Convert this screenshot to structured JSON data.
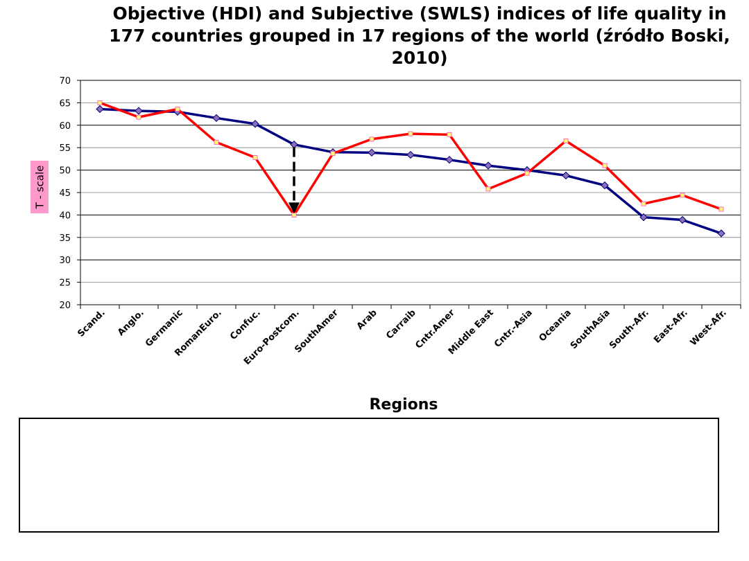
{
  "title": "Objective (HDI) and Subjective (SWLS) indices of life quality  in 177 countries  grouped in 17 regions of the world (źródło Boski, 2010)",
  "chart_data": {
    "type": "line",
    "title": "Objective (HDI) and Subjective (SWLS) indices of life quality  in 177 countries  grouped in 17 regions of the world (źródło Boski, 2010)",
    "xlabel": "Regions",
    "ylabel": "T - scale",
    "ylim": [
      20,
      70
    ],
    "ystep": 5,
    "grid": "major-every-10, minor-every-5",
    "categories": [
      "Scand.",
      "Anglo.",
      "Germanic",
      "RomanEuro.",
      "Confuc.",
      "Euro-Postcom.",
      "SouthAmer",
      "Arab",
      "Carraib",
      "Cntr.Amer",
      "Middle East",
      "Cntr.-Asia",
      "Oceania",
      "SouthAsia",
      "South-Afr.",
      "East-Afr.",
      "West-Afr."
    ],
    "series": [
      {
        "color": "#000080",
        "marker_color": "#8b6fb8",
        "values": [
          63.6,
          63.2,
          63.0,
          61.6,
          60.3,
          55.7,
          54.0,
          53.9,
          53.4,
          52.3,
          51.0,
          50.0,
          48.8,
          46.6,
          39.5,
          38.9,
          35.9
        ]
      },
      {
        "color": "#ff0000",
        "marker_color": "#ffff66",
        "values": [
          65.0,
          61.8,
          63.6,
          56.2,
          52.8,
          40.0,
          53.7,
          56.9,
          58.1,
          57.9,
          45.8,
          49.3,
          56.5,
          51.0,
          42.5,
          44.4,
          41.3
        ]
      }
    ],
    "annotation": {
      "type": "dashed-arrow",
      "category_index": 5,
      "from": 55.7,
      "to": 40.0,
      "color": "#000000"
    },
    "ylabel_bg": "#ff99cc"
  }
}
